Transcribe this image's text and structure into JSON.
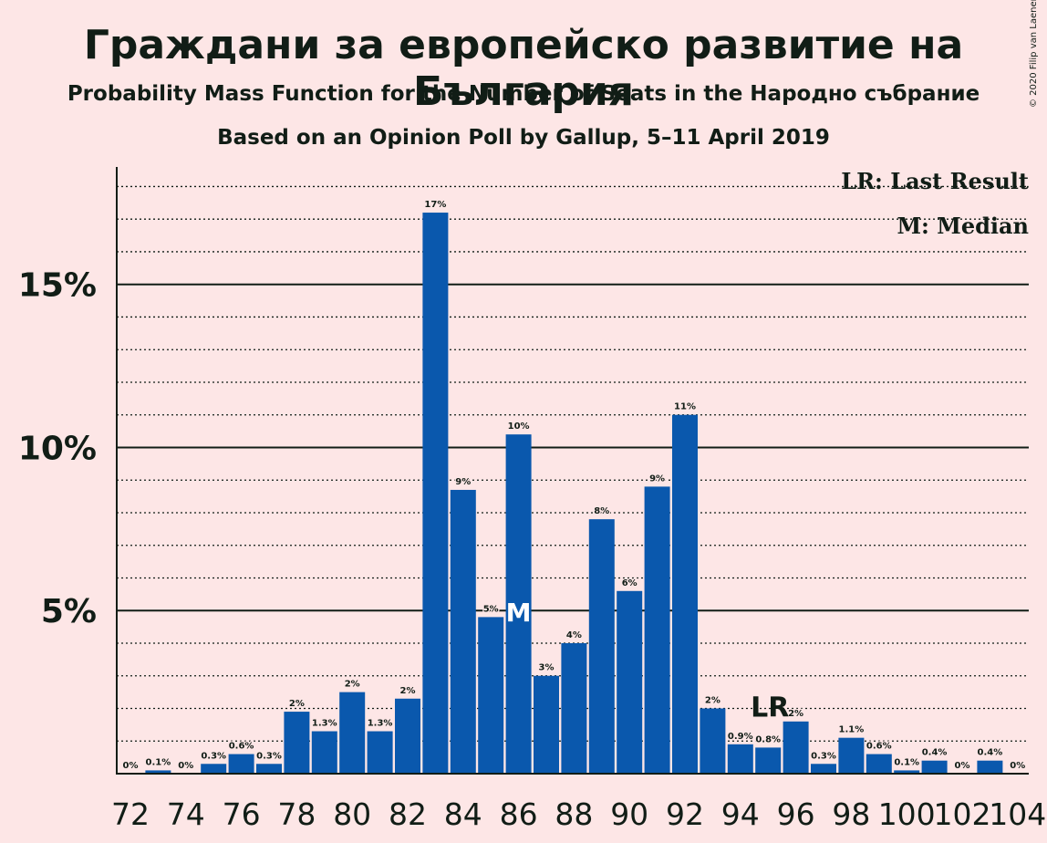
{
  "title": "Граждани за европейско развитие на България",
  "subtitle": "Probability Mass Function for the Number of Seats in the Народно събрание",
  "subtitle2": "Based on an Opinion Poll by Gallup, 5–11 April 2019",
  "copyright": "© 2020 Filip van Laenen",
  "legend": {
    "last_result": "LR: Last Result",
    "median": "M: Median"
  },
  "colors": {
    "background": "#fde6e6",
    "bar": "#0a58ad",
    "text": "#111d16"
  },
  "chart_data": {
    "type": "bar",
    "categories": [
      72,
      73,
      74,
      75,
      76,
      77,
      78,
      79,
      80,
      81,
      82,
      83,
      84,
      85,
      86,
      87,
      88,
      89,
      90,
      91,
      92,
      93,
      94,
      95,
      96,
      97,
      98,
      99,
      100,
      101,
      102,
      103,
      104
    ],
    "values": [
      0,
      0.1,
      0,
      0.3,
      0.6,
      0.3,
      1.9,
      1.3,
      2.5,
      1.3,
      2.3,
      17.2,
      8.7,
      4.8,
      10.4,
      3.0,
      4.0,
      7.8,
      5.6,
      8.8,
      11.0,
      2.0,
      0.9,
      0.8,
      1.6,
      0.3,
      1.1,
      0.6,
      0.1,
      0.4,
      0,
      0.4,
      0
    ],
    "data_labels": [
      "0%",
      "0.1%",
      "0%",
      "0.3%",
      "0.6%",
      "0.3%",
      "2%",
      "1.3%",
      "2%",
      "1.3%",
      "2%",
      "17%",
      "9%",
      "5%",
      "10%",
      "3%",
      "4%",
      "8%",
      "6%",
      "9%",
      "11%",
      "2%",
      "0.9%",
      "0.8%",
      "2%",
      "0.3%",
      "1.1%",
      "0.6%",
      "0.1%",
      "0.4%",
      "0%",
      "0.4%",
      "0%"
    ],
    "x_tick_labels": [
      "72",
      "74",
      "76",
      "78",
      "80",
      "82",
      "84",
      "86",
      "88",
      "90",
      "92",
      "94",
      "96",
      "98",
      "100",
      "102",
      "104"
    ],
    "y_tick_labels": [
      "5%",
      "10%",
      "15%"
    ],
    "y_ticks": [
      5,
      10,
      15
    ],
    "ylim": [
      0,
      18.6
    ],
    "median_seat": 86,
    "median_marker": "M",
    "last_result_seat": 95,
    "last_result_marker": "LR",
    "grid": "dotted minor every 1%, solid major every 5%"
  }
}
